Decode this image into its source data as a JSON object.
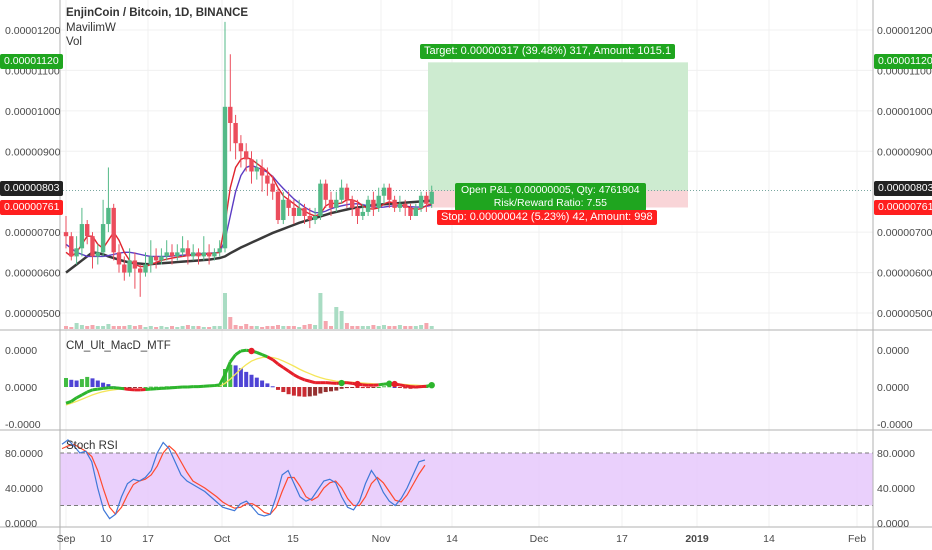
{
  "header": {
    "symbol": "EnjinCoin / Bitcoin, 1D, BINANCE",
    "indicator_1": "MavilimW",
    "indicator_2": "Vol"
  },
  "pane_titles": {
    "macd": "CM_Ult_MacD_MTF",
    "stoch": "Stoch RSI"
  },
  "labels": {
    "target": "Target: 0.00000317 (39.48%) 317, Amount: 1015.1",
    "open_pnl": "Open P&L: 0.00000005, Qty: 4761904",
    "risk_reward": "Risk/Reward Ratio: 7.55",
    "stop": "Stop: 0.00000042 (5.23%) 42, Amount: 998",
    "target_price_tag": "0.00001120",
    "last_price_tag": "0.00000803",
    "stop_price_tag": "0.00000761"
  },
  "colors": {
    "up": "#53b987",
    "down": "#eb4d5c",
    "target_zone": "#cdebd0",
    "stop_zone": "#f9d5d8",
    "stoch_band": "#e6c8fb",
    "green_tag": "#1fa51f",
    "red_tag": "#ff1f1f",
    "dark_tag": "#222222"
  },
  "chart_data": {
    "type": "candlestick",
    "price_axis_ticks": [
      "0.00001200",
      "0.00001100",
      "0.00001000",
      "0.00000900",
      "0.00000700",
      "0.00000600",
      "0.00000500"
    ],
    "time_axis_ticks": [
      "Sep",
      "10",
      "17",
      "Oct",
      "15",
      "Nov",
      "14",
      "Dec",
      "17",
      "2019",
      "14",
      "Feb"
    ],
    "macd_axis_ticks": [
      "0.0000",
      "0.0000",
      "-0.0000"
    ],
    "stoch_axis_ticks": [
      "80.0000",
      "40.0000",
      "0.0000"
    ],
    "stoch_bands": [
      20,
      80
    ],
    "candles": [
      [
        700,
        690,
        740,
        660
      ],
      [
        690,
        640,
        700,
        630
      ],
      [
        640,
        660,
        690,
        620
      ],
      [
        660,
        720,
        760,
        640
      ],
      [
        720,
        690,
        730,
        670
      ],
      [
        690,
        640,
        700,
        610
      ],
      [
        640,
        650,
        670,
        620
      ],
      [
        650,
        720,
        780,
        640
      ],
      [
        720,
        760,
        860,
        700
      ],
      [
        760,
        650,
        770,
        630
      ],
      [
        650,
        620,
        670,
        600
      ],
      [
        620,
        600,
        640,
        580
      ],
      [
        600,
        630,
        660,
        590
      ],
      [
        630,
        610,
        650,
        560
      ],
      [
        610,
        600,
        620,
        540
      ],
      [
        600,
        620,
        650,
        590
      ],
      [
        620,
        640,
        680,
        600
      ],
      [
        640,
        630,
        660,
        610
      ],
      [
        630,
        640,
        660,
        620
      ],
      [
        640,
        650,
        680,
        630
      ],
      [
        650,
        640,
        670,
        620
      ],
      [
        640,
        650,
        670,
        630
      ],
      [
        650,
        660,
        690,
        640
      ],
      [
        660,
        640,
        680,
        620
      ],
      [
        640,
        650,
        670,
        630
      ],
      [
        650,
        640,
        660,
        620
      ],
      [
        640,
        650,
        690,
        630
      ],
      [
        650,
        640,
        670,
        620
      ],
      [
        640,
        650,
        660,
        630
      ],
      [
        650,
        660,
        680,
        640
      ],
      [
        660,
        1010,
        1220,
        650
      ],
      [
        1010,
        970,
        1140,
        900
      ],
      [
        970,
        920,
        990,
        880
      ],
      [
        920,
        900,
        940,
        860
      ],
      [
        900,
        880,
        920,
        850
      ],
      [
        880,
        850,
        900,
        820
      ],
      [
        850,
        860,
        880,
        830
      ],
      [
        860,
        840,
        880,
        800
      ],
      [
        840,
        820,
        860,
        790
      ],
      [
        820,
        800,
        840,
        780
      ],
      [
        800,
        730,
        810,
        720
      ],
      [
        730,
        780,
        800,
        720
      ],
      [
        780,
        760,
        800,
        740
      ],
      [
        760,
        740,
        780,
        720
      ],
      [
        740,
        760,
        780,
        740
      ],
      [
        760,
        740,
        770,
        720
      ],
      [
        740,
        730,
        760,
        710
      ],
      [
        730,
        740,
        760,
        720
      ],
      [
        740,
        820,
        830,
        730
      ],
      [
        820,
        780,
        830,
        760
      ],
      [
        780,
        760,
        800,
        740
      ],
      [
        760,
        780,
        800,
        750
      ],
      [
        780,
        810,
        830,
        770
      ],
      [
        810,
        780,
        820,
        760
      ],
      [
        780,
        760,
        790,
        740
      ],
      [
        760,
        740,
        780,
        720
      ],
      [
        740,
        750,
        770,
        730
      ],
      [
        750,
        780,
        790,
        740
      ],
      [
        780,
        760,
        800,
        740
      ],
      [
        760,
        790,
        810,
        750
      ],
      [
        790,
        810,
        820,
        770
      ],
      [
        810,
        780,
        820,
        760
      ],
      [
        780,
        760,
        790,
        750
      ],
      [
        760,
        770,
        790,
        750
      ],
      [
        770,
        760,
        780,
        740
      ],
      [
        760,
        740,
        770,
        730
      ],
      [
        740,
        760,
        770,
        740
      ],
      [
        760,
        790,
        800,
        750
      ],
      [
        790,
        770,
        800,
        750
      ],
      [
        770,
        800,
        815,
        760
      ]
    ],
    "volume": [
      3,
      2,
      6,
      4,
      3,
      4,
      3,
      3,
      5,
      3,
      3,
      3,
      4,
      3,
      4,
      2,
      3,
      2,
      3,
      2,
      3,
      2,
      3,
      4,
      3,
      3,
      2,
      2,
      3,
      3,
      36,
      12,
      4,
      3,
      5,
      3,
      3,
      2,
      3,
      3,
      4,
      3,
      3,
      3,
      2,
      4,
      5,
      4,
      36,
      8,
      3,
      22,
      18,
      6,
      3,
      3,
      3,
      3,
      4,
      3,
      4,
      3,
      3,
      4,
      3,
      3,
      3,
      4,
      6,
      3
    ],
    "mavilim": [
      600,
      610,
      620,
      630,
      640,
      650,
      648,
      645,
      640,
      636,
      632,
      628,
      625,
      623,
      622,
      621,
      621,
      622,
      623,
      624,
      625,
      626,
      627,
      628,
      629,
      630,
      631,
      632,
      634,
      636,
      640,
      648,
      655,
      662,
      668,
      674,
      680,
      686,
      692,
      698,
      703,
      708,
      713,
      718,
      723,
      727,
      731,
      735,
      739,
      743,
      747,
      750,
      753,
      756,
      759,
      761,
      763,
      765,
      767,
      768,
      769,
      770,
      771,
      772,
      773,
      774,
      775,
      776,
      777,
      778
    ],
    "ma_fast": [
      650,
      640,
      650,
      670,
      690,
      690,
      670,
      660,
      680,
      700,
      680,
      650,
      630,
      620,
      615,
      615,
      620,
      625,
      630,
      633,
      636,
      638,
      640,
      642,
      643,
      644,
      645,
      646,
      648,
      650,
      720,
      810,
      860,
      880,
      885,
      880,
      870,
      860,
      850,
      835,
      810,
      790,
      780,
      770,
      760,
      752,
      745,
      740,
      745,
      765,
      772,
      770,
      772,
      780,
      780,
      775,
      765,
      758,
      757,
      760,
      770,
      775,
      772,
      768,
      765,
      760,
      756,
      758,
      766,
      770
    ],
    "ma_slow": [
      670,
      660,
      650,
      645,
      640,
      640,
      640,
      640,
      642,
      645,
      648,
      650,
      650,
      648,
      645,
      642,
      640,
      640,
      640,
      640,
      641,
      642,
      643,
      644,
      645,
      646,
      647,
      648,
      649,
      650,
      680,
      740,
      800,
      840,
      860,
      865,
      860,
      855,
      848,
      838,
      822,
      808,
      795,
      782,
      772,
      762,
      754,
      748,
      748,
      752,
      758,
      762,
      765,
      768,
      770,
      770,
      768,
      765,
      762,
      761,
      762,
      764,
      765,
      765,
      764,
      763,
      762,
      762,
      764,
      767
    ],
    "macd_hist": [
      0.25,
      0.2,
      0.18,
      0.22,
      0.28,
      0.24,
      0.18,
      0.12,
      0.08,
      0.02,
      -0.02,
      -0.03,
      -0.02,
      -0.01,
      -0.01,
      0.0,
      0.01,
      0.01,
      0.01,
      0.02,
      0.02,
      0.02,
      0.02,
      0.02,
      0.02,
      0.02,
      0.03,
      0.03,
      0.03,
      0.04,
      0.5,
      0.62,
      0.6,
      0.52,
      0.42,
      0.34,
      0.26,
      0.18,
      0.1,
      0.02,
      -0.08,
      -0.14,
      -0.2,
      -0.24,
      -0.26,
      -0.27,
      -0.26,
      -0.24,
      -0.18,
      -0.14,
      -0.12,
      -0.1,
      -0.05,
      -0.03,
      -0.02,
      -0.02,
      -0.03,
      -0.03,
      -0.01,
      0.0,
      0.02,
      0.02,
      0.0,
      -0.02,
      -0.04,
      -0.05,
      -0.04,
      -0.02,
      0.0,
      0.02
    ],
    "macd_line": [
      -0.45,
      -0.4,
      -0.3,
      -0.22,
      -0.14,
      -0.08,
      -0.06,
      -0.04,
      -0.02,
      -0.02,
      -0.03,
      -0.05,
      -0.07,
      -0.08,
      -0.08,
      -0.07,
      -0.06,
      -0.05,
      -0.04,
      -0.03,
      -0.02,
      -0.01,
      0.0,
      0.0,
      0.01,
      0.01,
      0.02,
      0.03,
      0.04,
      0.06,
      0.35,
      0.7,
      0.9,
      1.0,
      1.02,
      1.0,
      0.96,
      0.9,
      0.84,
      0.76,
      0.64,
      0.54,
      0.44,
      0.34,
      0.26,
      0.2,
      0.16,
      0.12,
      0.12,
      0.12,
      0.11,
      0.1,
      0.11,
      0.12,
      0.1,
      0.08,
      0.06,
      0.05,
      0.05,
      0.06,
      0.08,
      0.09,
      0.08,
      0.06,
      0.03,
      0.01,
      0.0,
      0.01,
      0.02,
      0.05
    ],
    "macd_signal": [
      -0.5,
      -0.45,
      -0.4,
      -0.34,
      -0.28,
      -0.22,
      -0.17,
      -0.13,
      -0.1,
      -0.08,
      -0.06,
      -0.06,
      -0.06,
      -0.06,
      -0.06,
      -0.06,
      -0.06,
      -0.05,
      -0.05,
      -0.04,
      -0.03,
      -0.02,
      -0.02,
      -0.01,
      0.0,
      0.0,
      0.0,
      0.01,
      0.02,
      0.03,
      0.1,
      0.22,
      0.36,
      0.5,
      0.62,
      0.72,
      0.78,
      0.82,
      0.83,
      0.82,
      0.78,
      0.72,
      0.65,
      0.58,
      0.5,
      0.43,
      0.37,
      0.31,
      0.26,
      0.22,
      0.19,
      0.16,
      0.15,
      0.14,
      0.13,
      0.12,
      0.11,
      0.1,
      0.09,
      0.08,
      0.08,
      0.08,
      0.08,
      0.08,
      0.07,
      0.06,
      0.05,
      0.04,
      0.04,
      0.04
    ],
    "stoch_k": [
      90,
      95,
      88,
      80,
      82,
      70,
      40,
      15,
      5,
      10,
      30,
      45,
      50,
      48,
      52,
      60,
      80,
      92,
      85,
      70,
      55,
      48,
      44,
      40,
      36,
      30,
      24,
      18,
      16,
      14,
      22,
      25,
      18,
      10,
      8,
      10,
      30,
      55,
      60,
      45,
      30,
      25,
      28,
      38,
      48,
      50,
      46,
      30,
      18,
      15,
      25,
      45,
      60,
      50,
      35,
      25,
      20,
      28,
      40,
      55,
      70,
      72
    ],
    "stoch_d": [
      85,
      88,
      90,
      86,
      82,
      76,
      60,
      38,
      18,
      10,
      18,
      32,
      44,
      48,
      50,
      55,
      65,
      80,
      88,
      82,
      70,
      58,
      48,
      44,
      40,
      35,
      30,
      24,
      20,
      17,
      18,
      22,
      22,
      18,
      12,
      10,
      18,
      36,
      52,
      52,
      42,
      30,
      26,
      30,
      40,
      46,
      48,
      40,
      28,
      20,
      20,
      30,
      45,
      52,
      46,
      36,
      26,
      24,
      32,
      44,
      56,
      66
    ]
  }
}
